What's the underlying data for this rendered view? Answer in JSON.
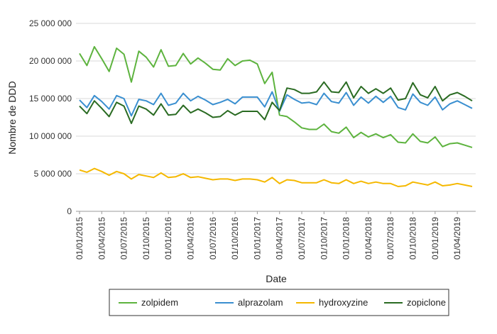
{
  "chart_data": {
    "type": "line",
    "title": "",
    "xlabel": "Date",
    "ylabel": "Nombre de DDD",
    "ylim": [
      0,
      25000000
    ],
    "y_ticks": [
      0,
      5000000,
      10000000,
      15000000,
      20000000,
      25000000
    ],
    "y_tick_labels": [
      "0",
      "5 000 000",
      "10 000 000",
      "15 000 000",
      "20 000 000",
      "25 000 000"
    ],
    "x_tick_labels": [
      "01/01/2015",
      "01/04/2015",
      "01/07/2015",
      "01/10/2015",
      "01/01/2016",
      "01/04/2016",
      "01/07/2016",
      "01/10/2016",
      "01/01/2017",
      "01/04/2017",
      "01/07/2017",
      "01/10/2017",
      "01/01/2018",
      "01/04/2018",
      "01/07/2018",
      "01/10/2018",
      "01/01/2019",
      "01/04/2019"
    ],
    "x": [
      "01/01/2015",
      "01/02/2015",
      "01/03/2015",
      "01/04/2015",
      "01/05/2015",
      "01/06/2015",
      "01/07/2015",
      "01/08/2015",
      "01/09/2015",
      "01/10/2015",
      "01/11/2015",
      "01/12/2015",
      "01/01/2016",
      "01/02/2016",
      "01/03/2016",
      "01/04/2016",
      "01/05/2016",
      "01/06/2016",
      "01/07/2016",
      "01/08/2016",
      "01/09/2016",
      "01/10/2016",
      "01/11/2016",
      "01/12/2016",
      "01/01/2017",
      "01/02/2017",
      "01/03/2017",
      "01/04/2017",
      "01/05/2017",
      "01/06/2017",
      "01/07/2017",
      "01/08/2017",
      "01/09/2017",
      "01/10/2017",
      "01/11/2017",
      "01/12/2017",
      "01/01/2018",
      "01/02/2018",
      "01/03/2018",
      "01/04/2018",
      "01/05/2018",
      "01/06/2018",
      "01/07/2018",
      "01/08/2018",
      "01/09/2018",
      "01/10/2018",
      "01/11/2018",
      "01/12/2018",
      "01/01/2019",
      "01/02/2019",
      "01/03/2019",
      "01/04/2019",
      "01/05/2019",
      "01/06/2019"
    ],
    "grid": true,
    "legend_position": "bottom",
    "series": [
      {
        "name": "zolpidem",
        "color": "#5db33e",
        "values": [
          21000000,
          19400000,
          21900000,
          20300000,
          18600000,
          21700000,
          20900000,
          17200000,
          21300000,
          20500000,
          19200000,
          21500000,
          19300000,
          19400000,
          21000000,
          19600000,
          20400000,
          19700000,
          18900000,
          18800000,
          20300000,
          19400000,
          20000000,
          20100000,
          19600000,
          17000000,
          18500000,
          12800000,
          12600000,
          11900000,
          11100000,
          10900000,
          10900000,
          11600000,
          10600000,
          10400000,
          11200000,
          9800000,
          10500000,
          9900000,
          10300000,
          9800000,
          10200000,
          9200000,
          9100000,
          10300000,
          9300000,
          9100000,
          9900000,
          8600000,
          9000000,
          9100000,
          8800000,
          8500000
        ]
      },
      {
        "name": "alprazolam",
        "color": "#3a8fd0",
        "values": [
          14800000,
          13800000,
          15400000,
          14600000,
          13600000,
          15400000,
          15000000,
          12700000,
          14900000,
          14700000,
          14200000,
          15700000,
          14100000,
          14400000,
          15700000,
          14700000,
          15300000,
          14800000,
          14200000,
          14500000,
          14900000,
          14300000,
          15200000,
          15200000,
          15200000,
          13900000,
          15900000,
          13300000,
          15500000,
          14900000,
          14400000,
          14500000,
          14200000,
          15700000,
          14600000,
          14400000,
          15800000,
          14100000,
          15200000,
          14400000,
          15300000,
          14500000,
          15300000,
          13800000,
          13500000,
          15600000,
          14500000,
          14100000,
          15200000,
          13500000,
          14300000,
          14700000,
          14200000,
          13700000
        ]
      },
      {
        "name": "hydroxyzine",
        "color": "#f5b800",
        "values": [
          5500000,
          5200000,
          5700000,
          5300000,
          4800000,
          5300000,
          5000000,
          4300000,
          4900000,
          4700000,
          4500000,
          5100000,
          4500000,
          4600000,
          5000000,
          4500000,
          4600000,
          4400000,
          4200000,
          4300000,
          4300000,
          4100000,
          4300000,
          4300000,
          4200000,
          3900000,
          4500000,
          3700000,
          4200000,
          4100000,
          3800000,
          3800000,
          3800000,
          4200000,
          3800000,
          3700000,
          4200000,
          3700000,
          4000000,
          3700000,
          3900000,
          3700000,
          3700000,
          3300000,
          3400000,
          3900000,
          3700000,
          3500000,
          3900000,
          3400000,
          3500000,
          3700000,
          3500000,
          3300000
        ]
      },
      {
        "name": "zopiclone",
        "color": "#2a6b22",
        "values": [
          14000000,
          13000000,
          14700000,
          13700000,
          12600000,
          14500000,
          14000000,
          11700000,
          14000000,
          13600000,
          12800000,
          14300000,
          12800000,
          12900000,
          14100000,
          13100000,
          13600000,
          13100000,
          12500000,
          12600000,
          13400000,
          12800000,
          13300000,
          13300000,
          13300000,
          12200000,
          14500000,
          13400000,
          16400000,
          16200000,
          15700000,
          15700000,
          15900000,
          17200000,
          15900000,
          15800000,
          17200000,
          15100000,
          16600000,
          15700000,
          16300000,
          15700000,
          16400000,
          14800000,
          15000000,
          17100000,
          15500000,
          15100000,
          16600000,
          14700000,
          15500000,
          15800000,
          15300000,
          14700000
        ]
      }
    ]
  }
}
